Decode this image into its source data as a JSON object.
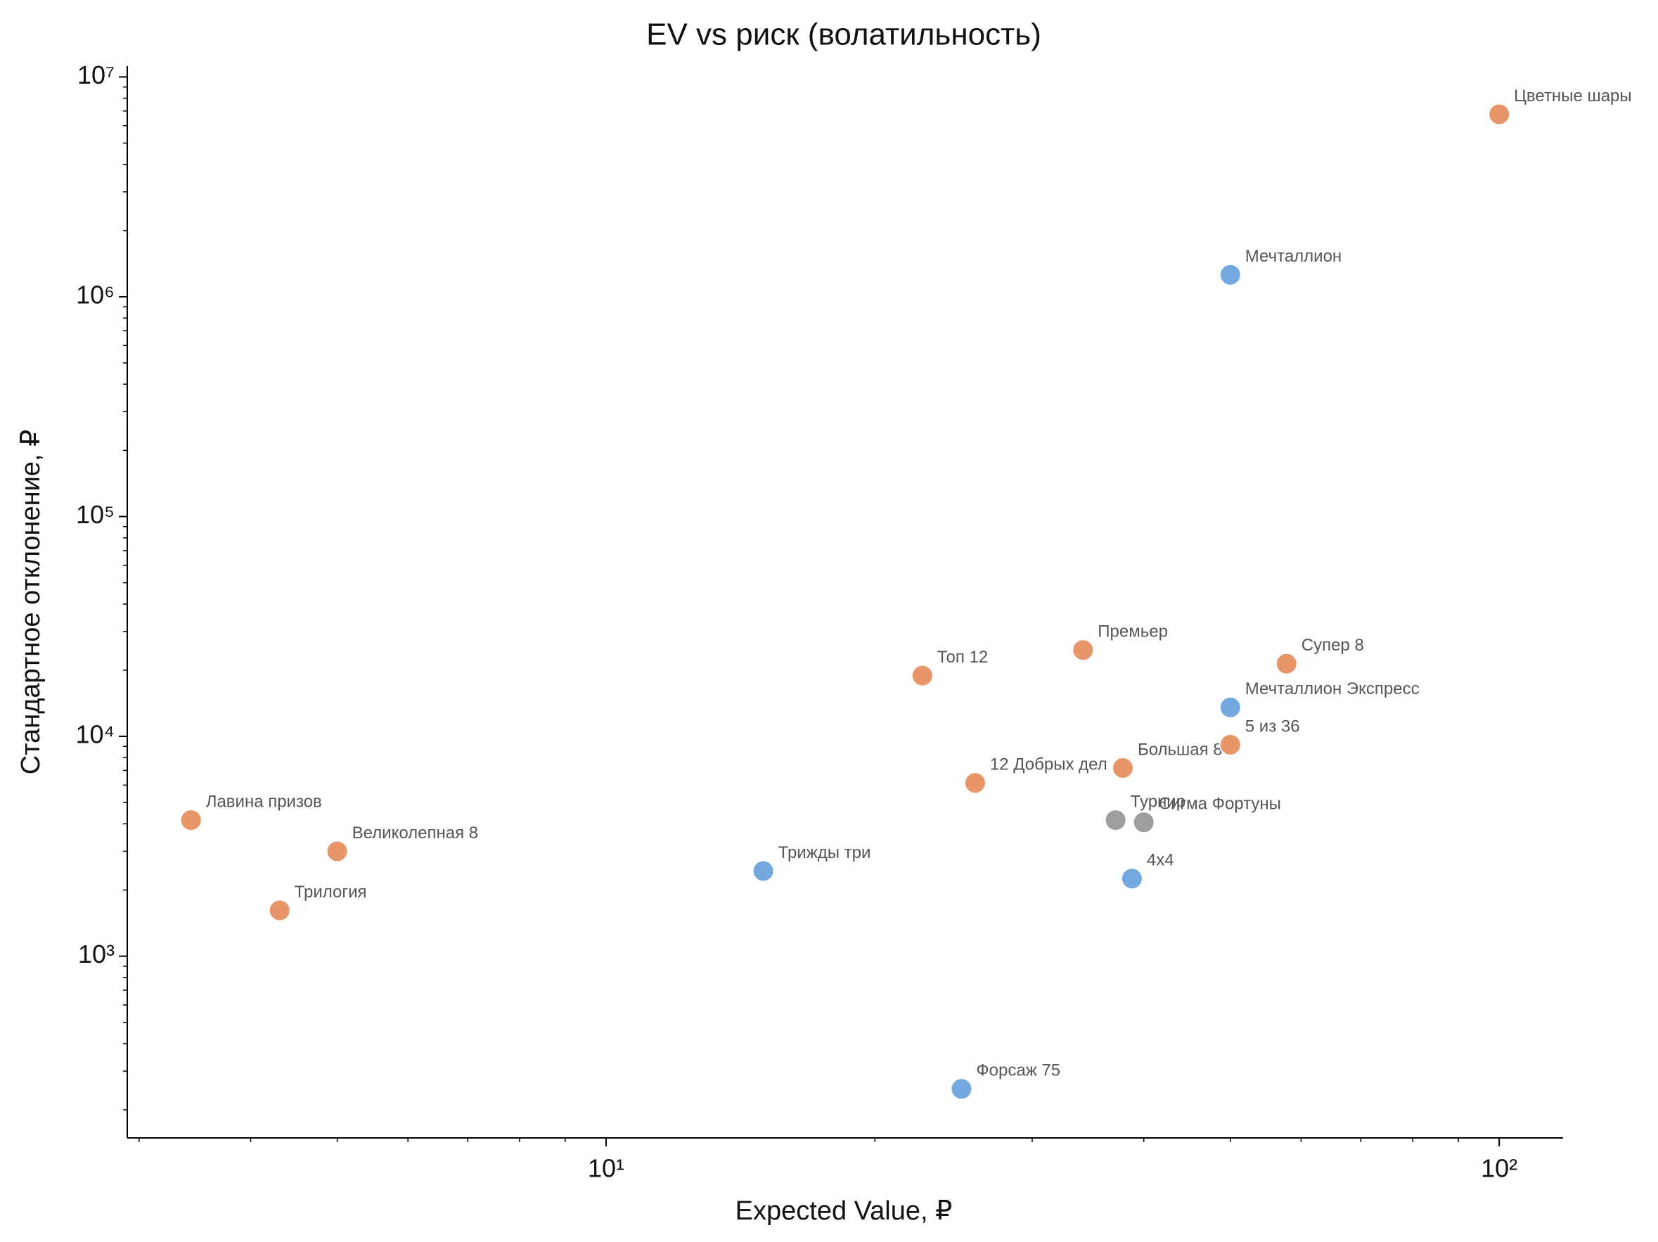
{
  "chart_data": {
    "type": "scatter",
    "title": "EV vs риск (волатильность)",
    "x_label": "Expected Value, ₽",
    "y_label": "Стандартное отклонение, ₽",
    "log_x": true,
    "log_y": true,
    "xlim": [
      2.91,
      117.9
    ],
    "ylim": [
      149,
      11200000
    ],
    "xticks": [
      {
        "value": 10,
        "label": "10¹"
      },
      {
        "value": 100,
        "label": "10²"
      }
    ],
    "yticks": [
      {
        "value": 1000,
        "label": "10³"
      },
      {
        "value": 10000,
        "label": "10⁴"
      },
      {
        "value": 100000,
        "label": "10⁵"
      },
      {
        "value": 1000000,
        "label": "10⁶"
      },
      {
        "value": 10000000,
        "label": "10⁷"
      }
    ],
    "xminorticks": [
      3,
      4,
      5,
      6,
      7,
      8,
      9,
      20,
      30,
      40,
      50,
      60,
      70,
      80,
      90
    ],
    "yminorticks": [
      200,
      300,
      400,
      500,
      600,
      700,
      800,
      900,
      2000,
      3000,
      4000,
      5000,
      6000,
      7000,
      8000,
      9000,
      20000,
      30000,
      40000,
      50000,
      60000,
      70000,
      80000,
      90000,
      200000,
      300000,
      400000,
      500000,
      600000,
      700000,
      800000,
      900000,
      2000000,
      3000000,
      4000000,
      5000000,
      6000000,
      7000000,
      8000000,
      9000000
    ],
    "labels": [
      "Лавина призов",
      "Великолепная 8",
      "Трилогия",
      "Трижды три",
      "Форсаж 75",
      "Топ 12",
      "12 Добрых дел",
      "Премьер",
      "Большая 8",
      "Турнир",
      "Сигма Фортуны",
      "4x4",
      "Мечталлион Экспресс",
      "5 из 36",
      "Супер 8",
      "Мечталлион",
      "Цветные шары"
    ],
    "x": [
      3.43,
      5,
      4.31,
      15,
      25,
      22.6,
      25.9,
      34.2,
      37.9,
      37.2,
      40,
      38.8,
      50,
      50,
      57.8,
      50,
      100
    ],
    "y": [
      4160,
      3000,
      1615,
      2440,
      249,
      18900,
      6140,
      24700,
      7180,
      4160,
      4065,
      2255,
      13540,
      9160,
      21400,
      1258000,
      6760000
    ],
    "colors": [
      "#e8956a",
      "#e8956a",
      "#e8956a",
      "#74a9e0",
      "#74a9e0",
      "#e8956a",
      "#e8956a",
      "#e8956a",
      "#e8956a",
      "#9e9e9e",
      "#9e9e9e",
      "#74a9e0",
      "#74a9e0",
      "#e8956a",
      "#e8956a",
      "#74a9e0",
      "#e8956a"
    ]
  }
}
